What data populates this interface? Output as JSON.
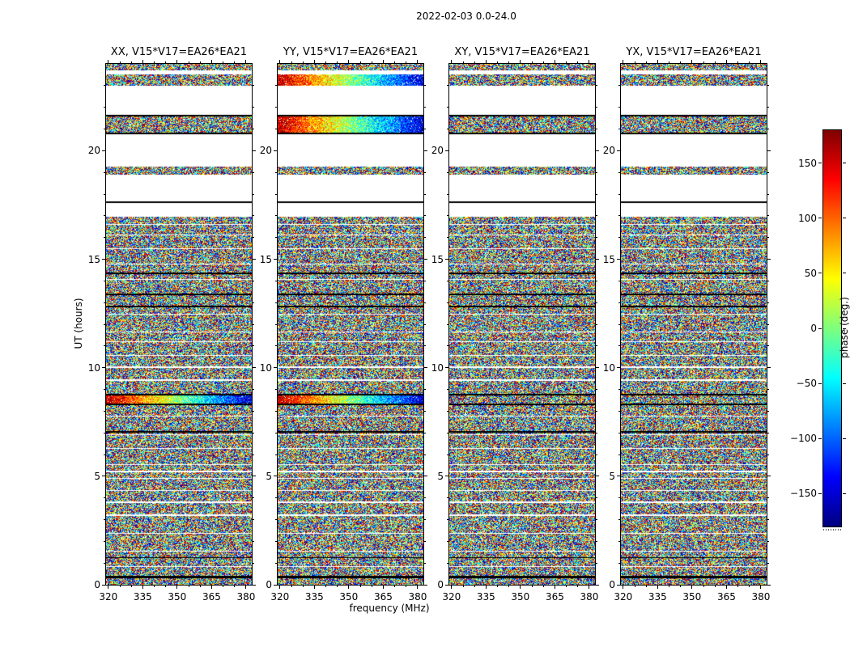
{
  "chart_data": {
    "type": "heatmap",
    "title": "2022-02-03 0.0-24.0",
    "xlabel": "frequency (MHz)",
    "ylabel": "UT (hours)",
    "panels": [
      {
        "title": "XX, V15*V17=EA26*EA21"
      },
      {
        "title": "YY, V15*V17=EA26*EA21"
      },
      {
        "title": "XY, V15*V17=EA26*EA21"
      },
      {
        "title": "YX, V15*V17=EA26*EA21"
      }
    ],
    "x_range": [
      319,
      382.5
    ],
    "x_ticks": [
      320,
      335,
      350,
      365,
      380
    ],
    "x_minor_step": 5,
    "y_range": [
      0,
      24
    ],
    "y_ticks": [
      0,
      5,
      10,
      15,
      20
    ],
    "colorbar": {
      "label": "phase (deg.)",
      "range": [
        -180,
        180
      ],
      "ticks": [
        150,
        100,
        50,
        0,
        -50,
        -100,
        -150
      ],
      "colormap": "jet"
    },
    "content_note": "Waterfall of visibility phase vs frequency and UT; dense pseudo-random phase speckle where data exist, white where no data, black flagged rows; coherent red-to-blue phase gradients in XX/YY near 8.5 h and in YY near 21.2 h and 23.2 h.",
    "noise_seed": 20220203,
    "bands": [
      {
        "t0": 0.0,
        "t1": 0.3,
        "style": "noise"
      },
      {
        "t0": 0.3,
        "t1": 0.4,
        "style": "black"
      },
      {
        "t0": 0.4,
        "t1": 8.27,
        "style": "noise",
        "gaps": true
      },
      {
        "t0": 8.27,
        "t1": 8.35,
        "style": "black"
      },
      {
        "t0": 8.35,
        "t1": 8.72,
        "style": "noise",
        "overrides": {
          "0": "gradient",
          "1": "gradient"
        }
      },
      {
        "t0": 8.72,
        "t1": 8.8,
        "style": "black"
      },
      {
        "t0": 8.8,
        "t1": 16.95,
        "style": "noise",
        "gaps": true
      },
      {
        "t0": 16.95,
        "t1": 17.58,
        "style": "white"
      },
      {
        "t0": 17.58,
        "t1": 17.66,
        "style": "black"
      },
      {
        "t0": 17.66,
        "t1": 18.9,
        "style": "white"
      },
      {
        "t0": 18.9,
        "t1": 19.28,
        "style": "noise"
      },
      {
        "t0": 19.28,
        "t1": 20.76,
        "style": "white"
      },
      {
        "t0": 20.76,
        "t1": 20.84,
        "style": "black"
      },
      {
        "t0": 20.84,
        "t1": 21.58,
        "style": "noise",
        "overrides": {
          "1": "gradient"
        }
      },
      {
        "t0": 21.58,
        "t1": 21.66,
        "style": "black"
      },
      {
        "t0": 21.66,
        "t1": 22.98,
        "style": "white"
      },
      {
        "t0": 22.98,
        "t1": 23.5,
        "style": "noise",
        "overrides": {
          "1": "gradient"
        }
      },
      {
        "t0": 23.5,
        "t1": 23.7,
        "style": "white"
      },
      {
        "t0": 23.7,
        "t1": 24.0,
        "style": "noise"
      },
      {
        "t0": 7.0,
        "t1": 7.08,
        "style": "black"
      },
      {
        "t0": 14.3,
        "t1": 14.38,
        "style": "black"
      }
    ]
  }
}
